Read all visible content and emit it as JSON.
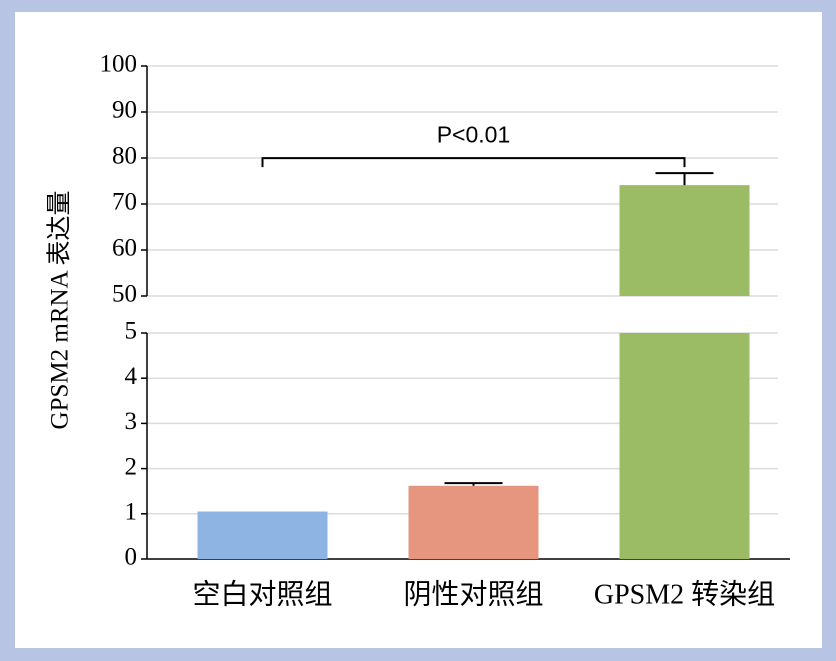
{
  "chart_data": {
    "type": "bar",
    "y_label": "GPSM2 mRNA 表达量",
    "annotation": "P<0.01",
    "categories": [
      "空白对照组",
      "阴性对照组",
      "GPSM2 转染组"
    ],
    "values": [
      1.05,
      1.62,
      74.1
    ],
    "errors": [
      null,
      0.06,
      2.6
    ],
    "colors": [
      "#8db4e2",
      "#e6967f",
      "#9bbb64"
    ],
    "ylim": [
      0,
      100
    ],
    "ybreak": [
      5,
      50
    ],
    "yticks": [
      0,
      1,
      2,
      3,
      4,
      5,
      50,
      60,
      70,
      80,
      90,
      100
    ],
    "grid": true
  }
}
